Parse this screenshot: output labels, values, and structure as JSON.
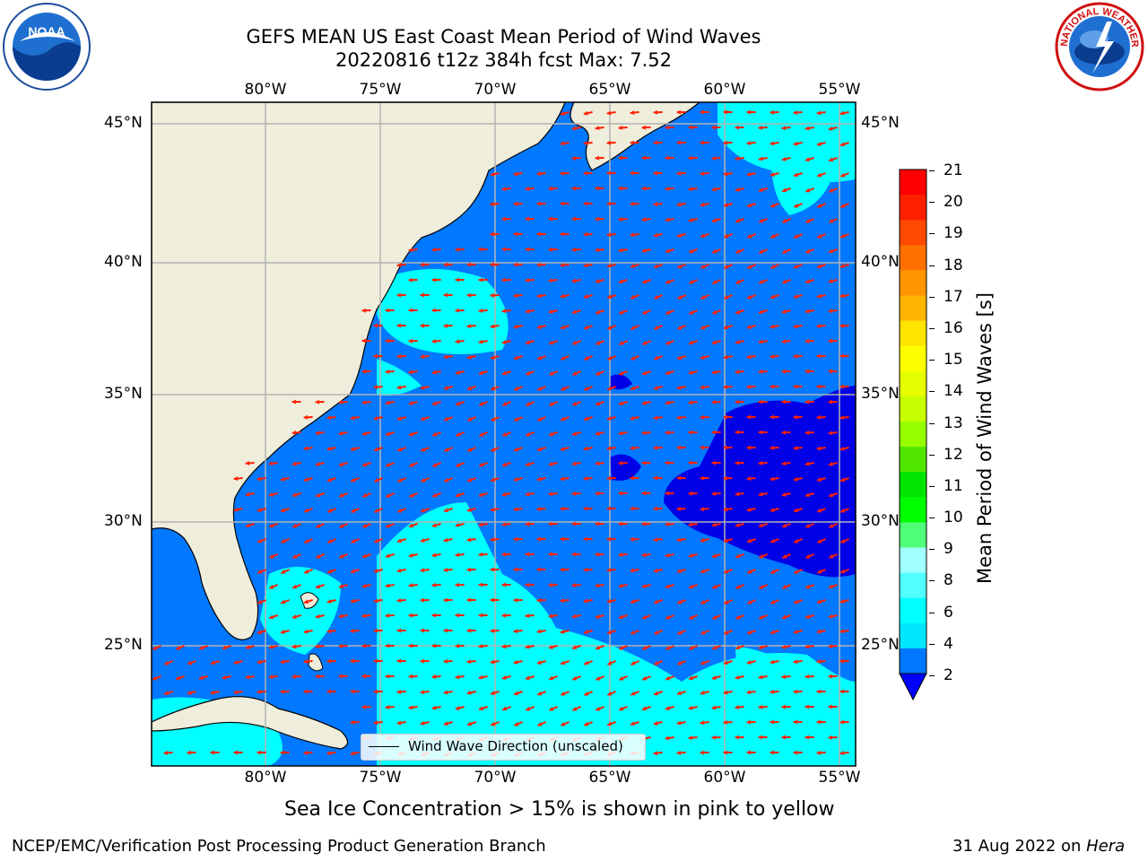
{
  "title": {
    "line1": "GEFS MEAN US East Coast Mean Period of Wind Waves",
    "line2": "20220816 t12z 384h fcst   Max: 7.52"
  },
  "logos": {
    "left": "NOAA",
    "left_ring": "NATIONAL OCEANIC AND ATMOSPHERIC ADMINISTRATION · U.S. DEPARTMENT OF COMMERCE",
    "right_ring": "NATIONAL WEATHER SERVICE"
  },
  "axes": {
    "lon_labels": [
      "80°W",
      "75°W",
      "70°W",
      "65°W",
      "60°W",
      "55°W"
    ],
    "lat_labels": [
      "45°N",
      "40°N",
      "35°N",
      "30°N",
      "25°N"
    ]
  },
  "colorbar": {
    "title": "Mean Period of Wind Waves [s]",
    "ticks": [
      "21",
      "20",
      "19",
      "18",
      "17",
      "16",
      "15",
      "14",
      "13",
      "12",
      "11",
      "10",
      "9",
      "8",
      "6",
      "4",
      "2"
    ],
    "colors": [
      "#ff0000",
      "#ff2000",
      "#ff4a00",
      "#ff7000",
      "#ff9600",
      "#ffb400",
      "#ffe400",
      "#ffff00",
      "#e6ff00",
      "#c8ff00",
      "#96ff00",
      "#50e600",
      "#00e600",
      "#00ff00",
      "#50ff78",
      "#a0ffff",
      "#50ffff",
      "#00ffff",
      "#00e6ff",
      "#0078ff"
    ],
    "extend_color": "#0000ff"
  },
  "legend": {
    "label": "Wind Wave Direction (unscaled)"
  },
  "note": "Sea Ice Concentration > 15% is shown in pink to yellow",
  "footer": {
    "left": "NCEP/EMC/Verification Post Processing Product Generation Branch",
    "right_prefix": "31 Aug 2022 on ",
    "right_italic": "Hera"
  },
  "map_colors": {
    "land": "#efeedc",
    "ocean_main": "#0078ff",
    "ocean_short": "#0000e6",
    "ocean_long": "#00ffff",
    "arrow": "#ff2000",
    "grid": "#b4b4b4"
  }
}
